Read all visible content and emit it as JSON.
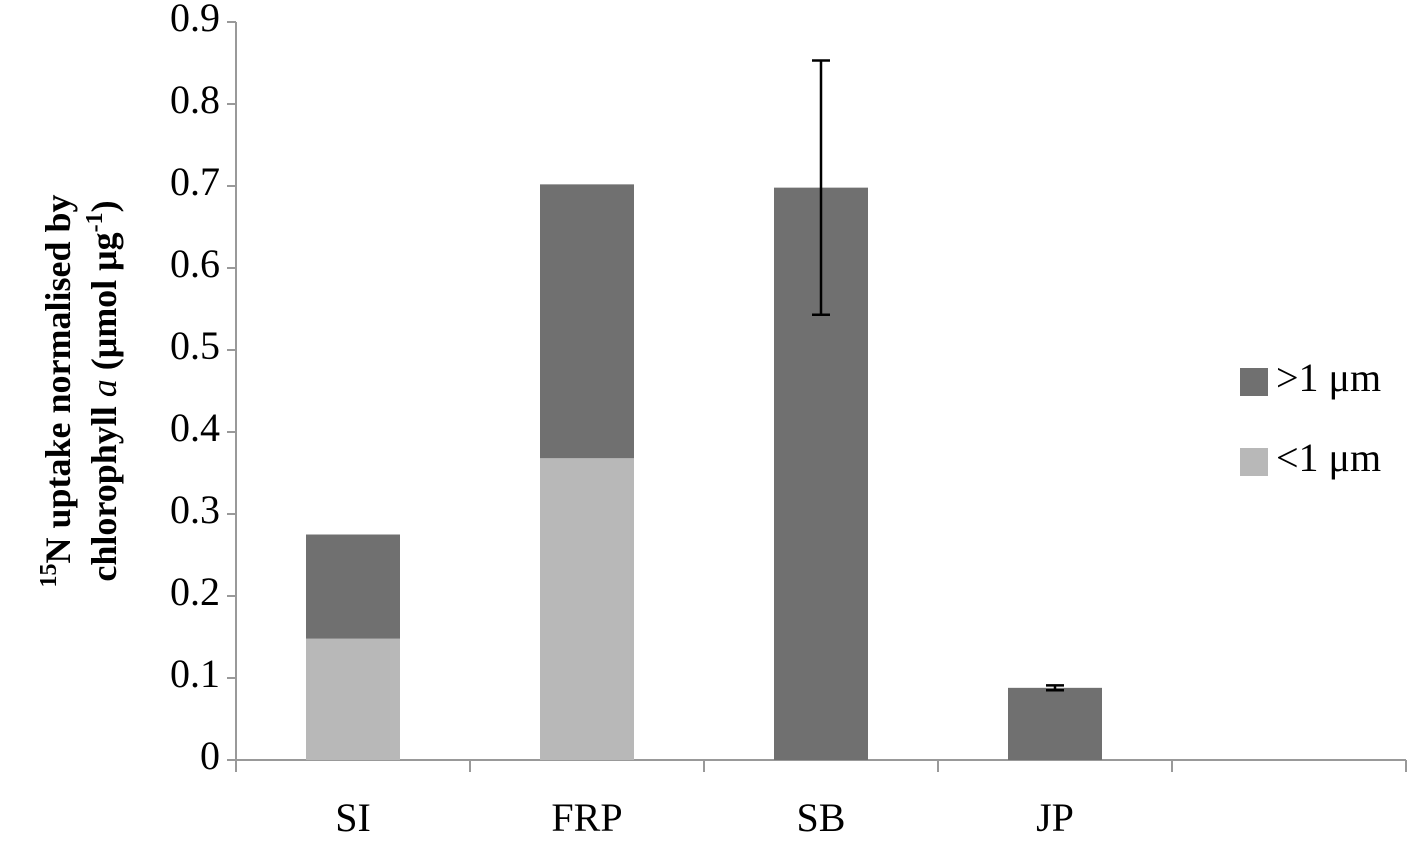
{
  "chart_data": {
    "type": "stacked_bar",
    "y_label": {
      "line1": [
        "15",
        "N uptake normalised by"
      ],
      "line2": [
        "chlorophyll ",
        "a",
        " (μmol μg",
        "-1",
        ")"
      ]
    },
    "categories": [
      "SI",
      "FRP",
      "SB",
      "JP",
      null
    ],
    "series": [
      {
        "name": "<1 μm",
        "color": "#b8b8b8",
        "values": [
          0.148,
          0.368,
          null,
          null,
          null
        ]
      },
      {
        "name": ">1 μm",
        "color": "#707070",
        "values": [
          0.127,
          0.334,
          0.698,
          0.088,
          null
        ],
        "errors": [
          null,
          null,
          0.155,
          0.003,
          null
        ]
      }
    ],
    "ylim": [
      0,
      0.9
    ],
    "yticks": [
      0,
      0.1,
      0.2,
      0.3,
      0.4,
      0.5,
      0.6,
      0.7,
      0.8,
      0.9
    ],
    "legend": "right",
    "grid": false
  }
}
